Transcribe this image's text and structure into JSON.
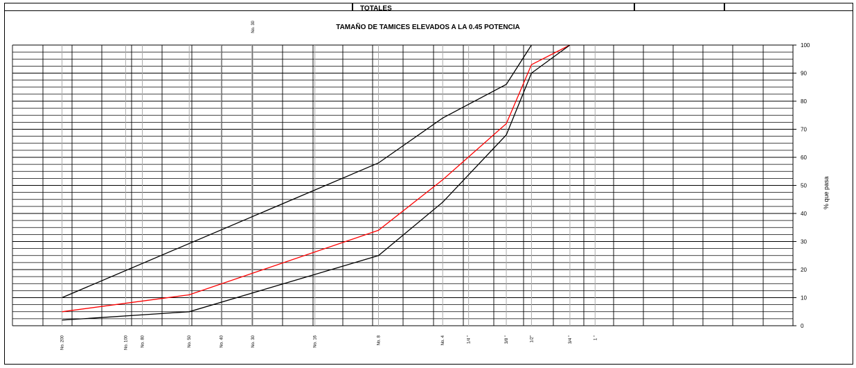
{
  "header": {
    "title": "TOTALES"
  },
  "chart_data": {
    "type": "line",
    "title": "TAMAÑO DE TAMICES ELEVADOS A LA 0.45 POTENCIA",
    "xlabel": "",
    "ylabel": "% que pasa",
    "x_scale": "sieve size ^ 0.45",
    "ylim": [
      0,
      100
    ],
    "y_ticks": [
      0,
      10,
      20,
      30,
      40,
      50,
      60,
      70,
      80,
      90,
      100
    ],
    "grid": true,
    "x_ticks": [
      {
        "label": "No. 200",
        "mm": 0.075
      },
      {
        "label": "No. 100",
        "mm": 0.15
      },
      {
        "label": "No. 80",
        "mm": 0.18
      },
      {
        "label": "No. 50",
        "mm": 0.3
      },
      {
        "label": "No. 40",
        "mm": 0.425
      },
      {
        "label": "No. 30",
        "mm": 0.6
      },
      {
        "label": "No. 16",
        "mm": 1.18
      },
      {
        "label": "No. 8",
        "mm": 2.36
      },
      {
        "label": "No. 4",
        "mm": 4.75
      },
      {
        "label": "1/4 \"",
        "mm": 6.3
      },
      {
        "label": "3/8 \"",
        "mm": 9.5
      },
      {
        "label": "1/2\"",
        "mm": 12.5
      },
      {
        "label": "3/4 \"",
        "mm": 19.0
      },
      {
        "label": "1 \"",
        "mm": 25.0
      }
    ],
    "top_label": "No. 30",
    "series": [
      {
        "color": "#000000",
        "points": [
          [
            0.075,
            10
          ],
          [
            2.36,
            58
          ],
          [
            4.75,
            74
          ],
          [
            9.5,
            86
          ],
          [
            12.5,
            100
          ]
        ]
      },
      {
        "color": "#ff0000",
        "points": [
          [
            0.075,
            5
          ],
          [
            0.3,
            11
          ],
          [
            2.36,
            34
          ],
          [
            4.75,
            52
          ],
          [
            9.5,
            72
          ],
          [
            12.5,
            93
          ],
          [
            19.0,
            100
          ]
        ]
      },
      {
        "color": "#000000",
        "points": [
          [
            0.075,
            2
          ],
          [
            0.3,
            5
          ],
          [
            2.36,
            25
          ],
          [
            4.75,
            44
          ],
          [
            9.5,
            68
          ],
          [
            12.5,
            90
          ],
          [
            19.0,
            100
          ]
        ]
      }
    ]
  }
}
